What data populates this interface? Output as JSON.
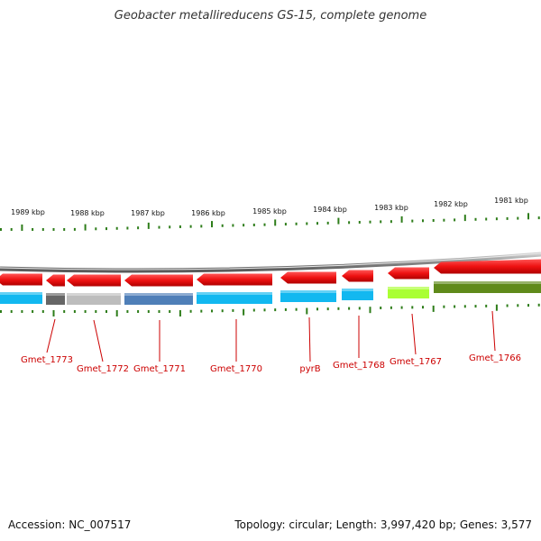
{
  "title": "Geobacter metallireducens GS-15, complete genome",
  "footer": {
    "accession": "Accession: NC_007517",
    "summary": "Topology: circular; Length: 3,997,420 bp; Genes: 3,577"
  },
  "colors": {
    "gene_forward": "#ee1111",
    "gene_forward_dark": "#b80000",
    "tick": "#2e7d1a",
    "backbone": "#8a8a8a",
    "label": "#cc0000"
  },
  "scale_labels": [
    "1989 kbp",
    "1988 kbp",
    "1987 kbp",
    "1986 kbp",
    "1985 kbp",
    "1984 kbp",
    "1983 kbp",
    "1982 kbp",
    "1981 kbp"
  ],
  "genes": [
    {
      "label": "Gmet_1773",
      "cog_color": "#666666"
    },
    {
      "label": "Gmet_1772",
      "cog_color": "#bdbdbd"
    },
    {
      "label": "Gmet_1771",
      "cog_color": "#4f7fb8"
    },
    {
      "label": "Gmet_1770",
      "cog_color": "#12b8f0"
    },
    {
      "label": "pyrB",
      "cog_color": "#12b8f0"
    },
    {
      "label": "Gmet_1768",
      "cog_color": "#12b8f0"
    },
    {
      "label": "Gmet_1767",
      "cog_color": "#aaff33"
    },
    {
      "label": "Gmet_1766",
      "cog_color": "#5f8a1a"
    }
  ]
}
